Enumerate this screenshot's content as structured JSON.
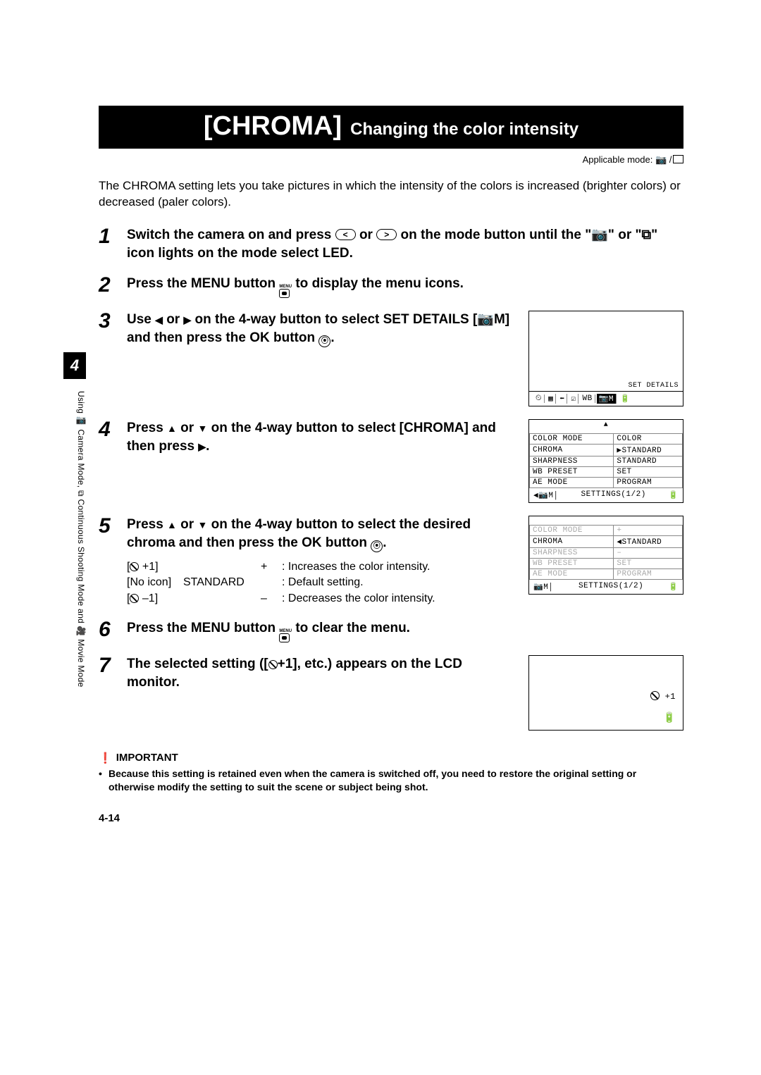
{
  "side_tab": "4",
  "side_text": "Using 📷 Camera Mode, ⧉ Continuous Shooting Mode and 🎥 Movie Mode",
  "title_big": "[CHROMA]",
  "title_sub": "Changing the color intensity",
  "applicable_label": "Applicable mode:",
  "applicable_icons": "📷 / ⧉",
  "intro": "The CHROMA setting lets you take pictures in which the intensity of the colors is increased (brighter colors) or decreased (paler colors).",
  "steps": [
    {
      "num": "1",
      "text_pre": "Switch the camera on and press ",
      "mid1": " or ",
      "text_post": " on the mode button until the \"📷\" or \"⧉\" icon lights on the mode select LED."
    },
    {
      "num": "2",
      "text": "Press the MENU button 🅼 to display the menu icons."
    },
    {
      "num": "3",
      "text": "Use ◀ or ▶ on the 4-way button to select SET DETAILS [📷M] and then press the OK button ⊚."
    },
    {
      "num": "4",
      "text": "Press ▲ or ▼ on the 4-way button to select [CHROMA] and then press ▶."
    },
    {
      "num": "5",
      "text": "Press ▲ or ▼ on the 4-way button to select the desired chroma and then press the OK button ⊚."
    },
    {
      "num": "6",
      "text": "Press the MENU button 🅼 to clear the menu."
    },
    {
      "num": "7",
      "text": "The selected setting ([⊘+1], etc.) appears on the LCD monitor."
    }
  ],
  "screen1": {
    "set_details": "SET DETAILS",
    "foot_icons": [
      "⏲",
      "▦",
      "⬅",
      "☑",
      "WB",
      "📷M",
      "🔋"
    ]
  },
  "screen2": {
    "rows": [
      [
        "COLOR MODE",
        "COLOR"
      ],
      [
        "CHROMA",
        "▶STANDARD"
      ],
      [
        "SHARPNESS",
        "STANDARD"
      ],
      [
        "WB PRESET",
        "SET"
      ],
      [
        "AE MODE",
        "PROGRAM"
      ]
    ],
    "foot_left": "◀📷M│",
    "foot_center": "SETTINGS(1/2)",
    "foot_right": "🔋"
  },
  "screen2b": {
    "rows": [
      [
        "COLOR MODE",
        "+",
        true
      ],
      [
        "CHROMA",
        "◀STANDARD",
        false
      ],
      [
        "SHARPNESS",
        "–",
        true
      ],
      [
        "WB PRESET",
        "SET",
        true
      ],
      [
        "AE MODE",
        "PROGRAM",
        true
      ]
    ],
    "foot_left": " 📷M│",
    "foot_center": "SETTINGS(1/2)",
    "foot_right": "🔋"
  },
  "settings_list": [
    {
      "c1": "[⊘ +1]",
      "c2": "",
      "c2b": "+",
      "c3": ": Increases the color intensity."
    },
    {
      "c1": "[No icon]",
      "c2": "STANDARD",
      "c2b": "",
      "c3": ": Default setting."
    },
    {
      "c1": "[⊘ –1]",
      "c2": "",
      "c2b": "–",
      "c3": ": Decreases the color intensity."
    }
  ],
  "screen3": {
    "indicator": "⊘+1",
    "batt": "🔋"
  },
  "important_label": "IMPORTANT",
  "important_text": "Because this setting is retained even when the camera is switched off, you need to restore the original setting or otherwise modify the setting to suit the scene or subject being shot.",
  "page_num": "4-14"
}
